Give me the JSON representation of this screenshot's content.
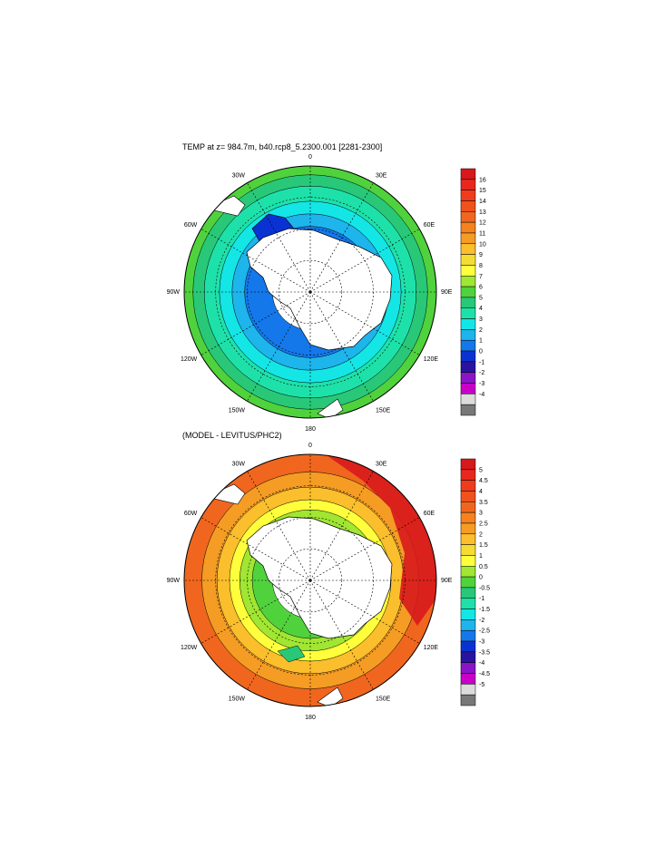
{
  "top_panel": {
    "title": "TEMP at z= 984.7m, b40.rcp8_5.2300.001 [2281-2300]",
    "lon_labels": {
      "n": "0",
      "s": "180",
      "e30": "30E",
      "e60": "60E",
      "e90": "90E",
      "e120": "120E",
      "e150": "150E",
      "w30": "30W",
      "w60": "60W",
      "w90": "90W",
      "w120": "120W",
      "w150": "150W"
    },
    "colorbar": {
      "labels": [
        "16",
        "15",
        "14",
        "13",
        "12",
        "11",
        "10",
        "9",
        "8",
        "7",
        "6",
        "5",
        "4",
        "3",
        "2",
        "1",
        "0",
        "-1",
        "-2",
        "-3",
        "-4"
      ],
      "colors": [
        "#d7191c",
        "#e8281e",
        "#f03c1c",
        "#f0521c",
        "#f0661e",
        "#f5821e",
        "#f59c24",
        "#fbbe2c",
        "#f5dc32",
        "#ffff3c",
        "#a0e632",
        "#50d23c",
        "#28c878",
        "#1ee1aa",
        "#14e6e6",
        "#1eb4ec",
        "#1478eb",
        "#0a32d2",
        "#2814a0",
        "#8c14c8",
        "#c800c8",
        "#dcdcdc",
        "#787878"
      ]
    },
    "zones": [
      {
        "r": 0.3,
        "color": "#ffffff"
      },
      {
        "r": 0.52,
        "color": "#1478eb"
      },
      {
        "r": 0.62,
        "color": "#1eb4ec"
      },
      {
        "r": 0.72,
        "color": "#14e6e6"
      },
      {
        "r": 0.84,
        "color": "#1ee1aa"
      },
      {
        "r": 0.93,
        "color": "#28c878"
      },
      {
        "r": 1.0,
        "color": "#50d23c"
      }
    ]
  },
  "bottom_panel": {
    "title": "(MODEL - LEVITUS/PHC2)",
    "lon_labels": {
      "n": "0",
      "s": "180",
      "e30": "30E",
      "e60": "60E",
      "e90": "90E",
      "e120": "120E",
      "e150": "150E",
      "w30": "30W",
      "w60": "60W",
      "w90": "90W",
      "w120": "120W",
      "w150": "150W"
    },
    "colorbar": {
      "labels": [
        "5",
        "4.5",
        "4",
        "3.5",
        "3",
        "2.5",
        "2",
        "1.5",
        "1",
        "0.5",
        "0",
        "-0.5",
        "-1",
        "-1.5",
        "-2",
        "-2.5",
        "-3",
        "-3.5",
        "-4",
        "-4.5",
        "-5"
      ],
      "colors": [
        "#d7191c",
        "#e8281e",
        "#f03c1c",
        "#f0521c",
        "#f0661e",
        "#f5821e",
        "#f59c24",
        "#fbbe2c",
        "#f5dc32",
        "#ffff3c",
        "#a0e632",
        "#50d23c",
        "#28c878",
        "#1ee1aa",
        "#14e6e6",
        "#1eb4ec",
        "#1478eb",
        "#0a32d2",
        "#2814a0",
        "#8c14c8",
        "#c800c8",
        "#dcdcdc",
        "#787878"
      ]
    },
    "zones": [
      {
        "r": 0.3,
        "color": "#ffffff"
      },
      {
        "r": 0.46,
        "color": "#50d23c"
      },
      {
        "r": 0.56,
        "color": "#a0e632"
      },
      {
        "r": 0.64,
        "color": "#ffff3c"
      },
      {
        "r": 0.74,
        "color": "#fbbe2c"
      },
      {
        "r": 0.86,
        "color": "#f59c24"
      },
      {
        "r": 1.0,
        "color": "#f0661e"
      }
    ]
  }
}
